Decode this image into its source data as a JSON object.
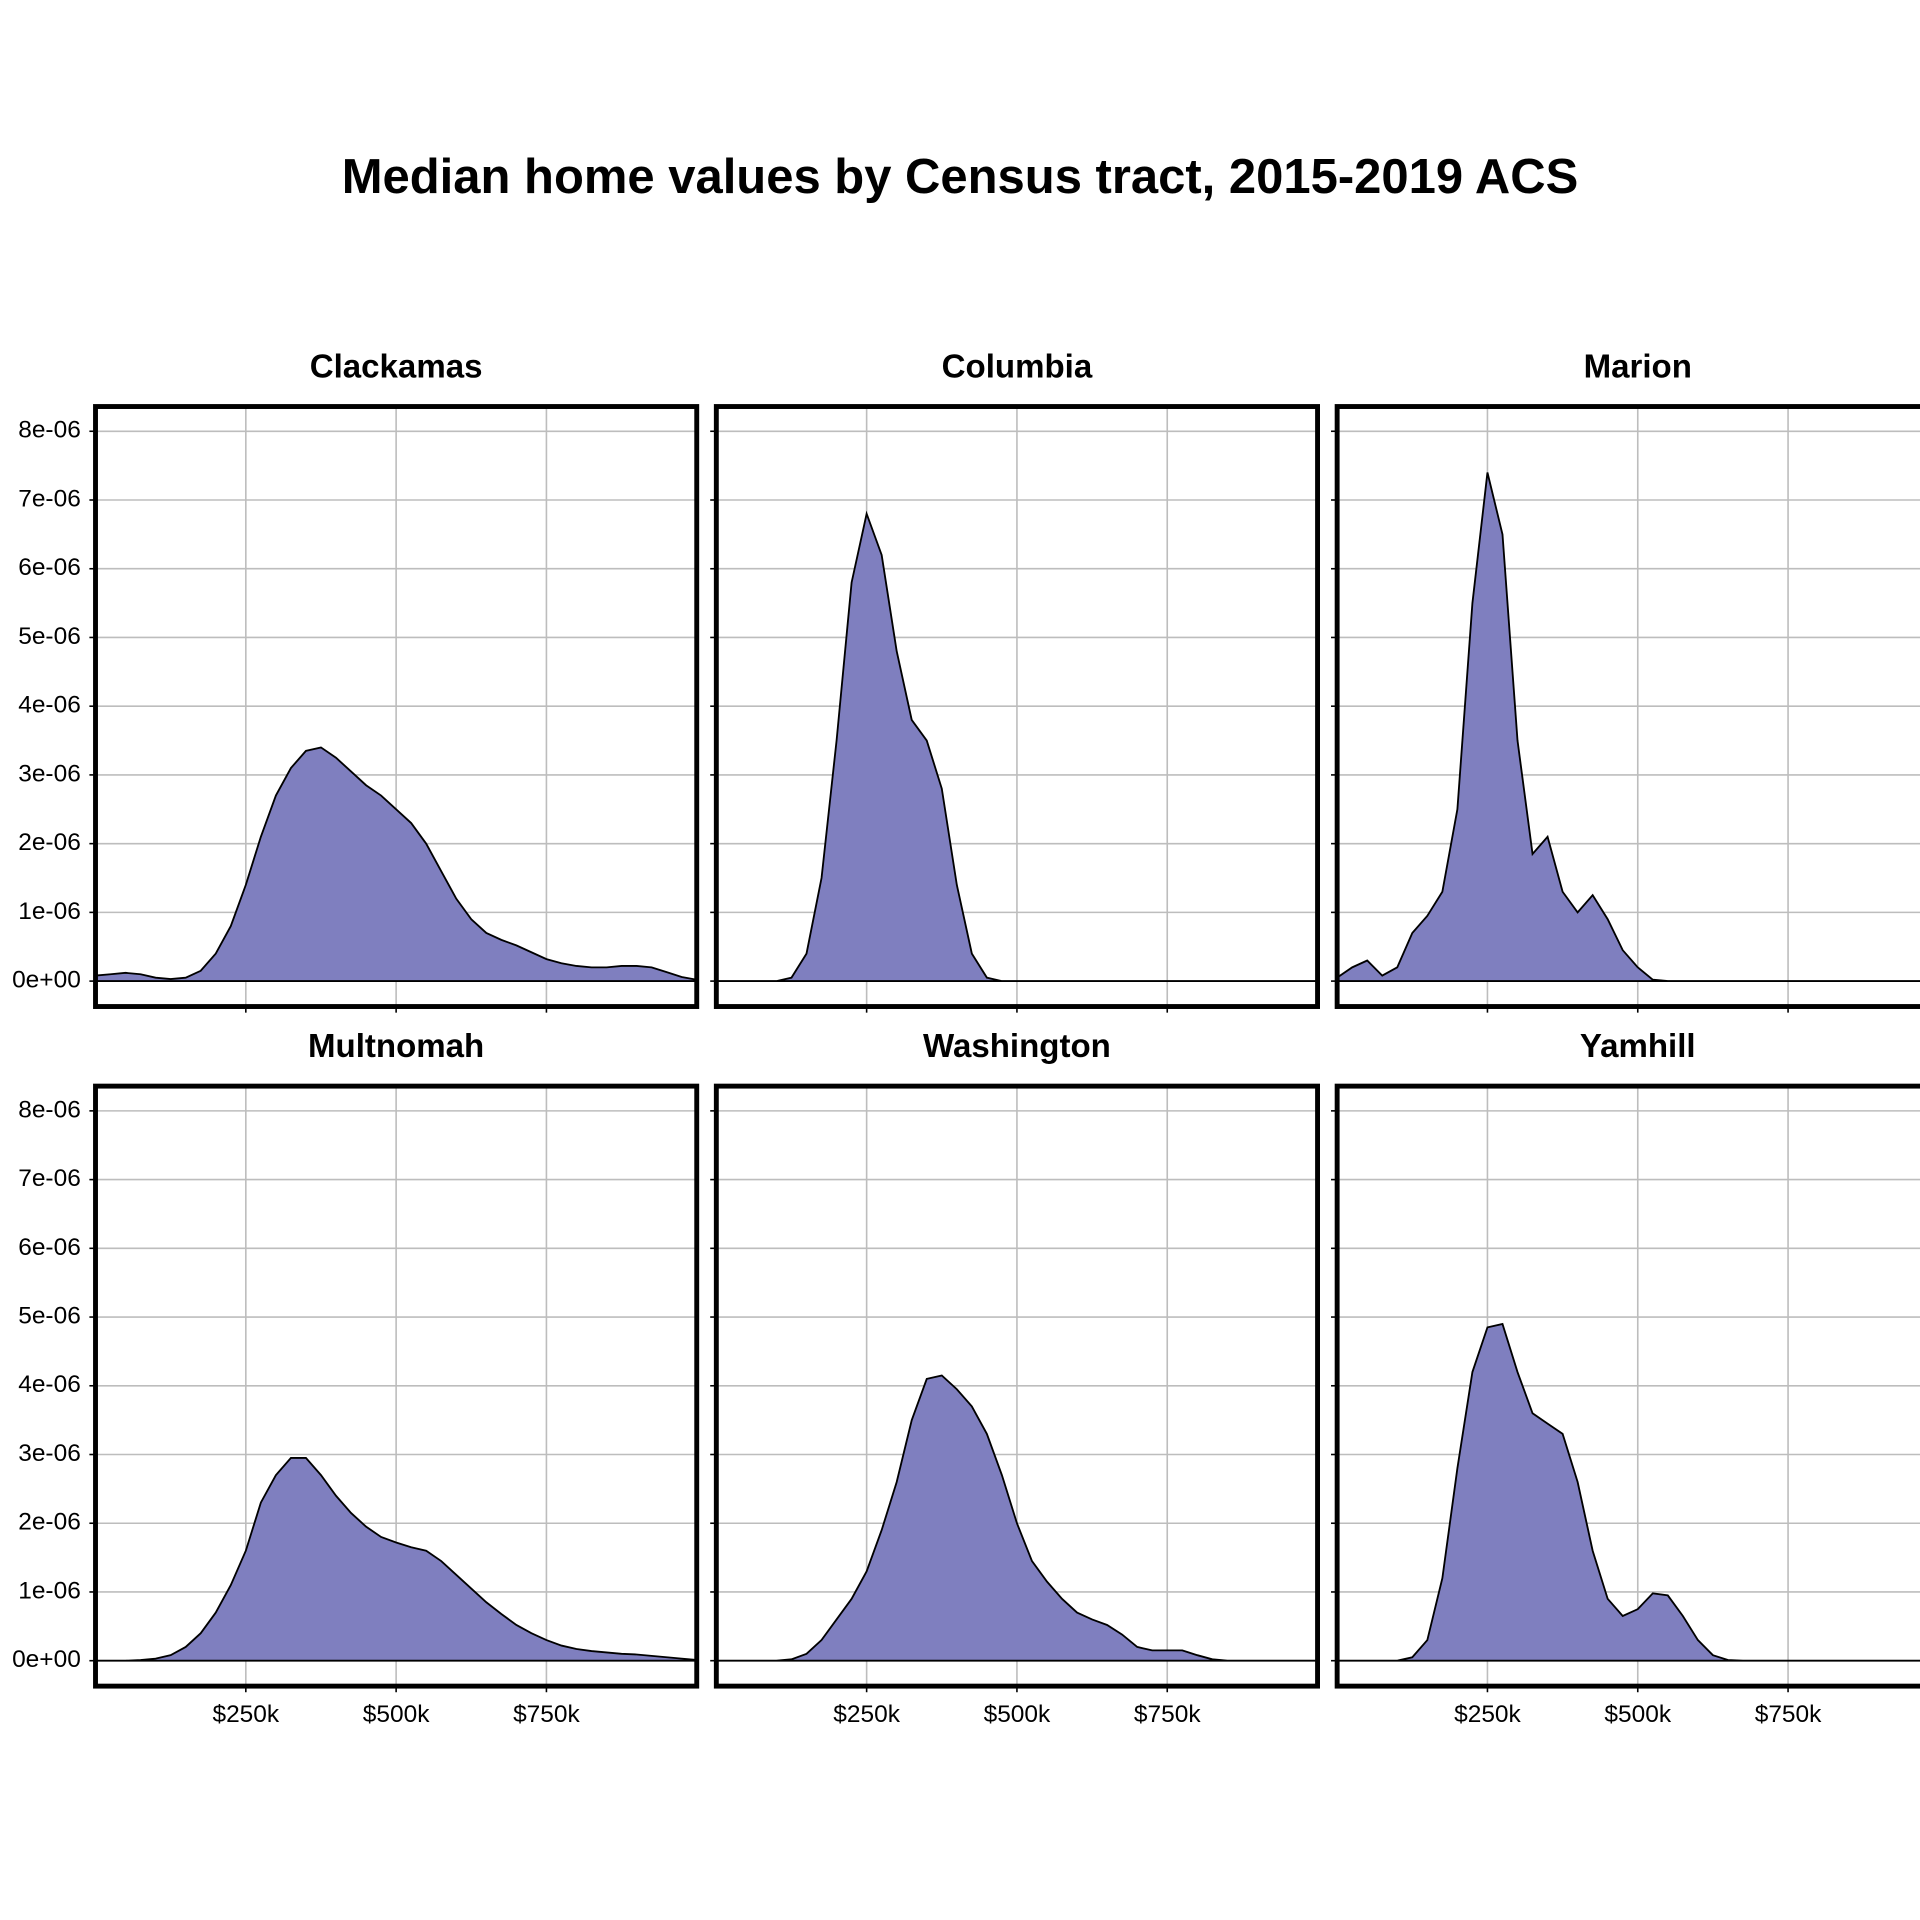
{
  "chart_data": {
    "type": "area",
    "title": "Median home values by Census tract, 2015-2019 ACS",
    "x": [
      0,
      25000,
      50000,
      75000,
      100000,
      125000,
      150000,
      175000,
      200000,
      225000,
      250000,
      275000,
      300000,
      325000,
      350000,
      375000,
      400000,
      425000,
      450000,
      475000,
      500000,
      525000,
      550000,
      575000,
      600000,
      625000,
      650000,
      675000,
      700000,
      725000,
      750000,
      775000,
      800000,
      825000,
      850000,
      875000,
      900000,
      925000,
      950000,
      975000,
      1000000
    ],
    "series": [
      {
        "name": "Clackamas",
        "color": "#7f7fbf",
        "values": [
          8e-08,
          1e-07,
          1.2e-07,
          1e-07,
          5e-08,
          3e-08,
          5e-08,
          1.5e-07,
          4e-07,
          8e-07,
          1.4e-06,
          2.1e-06,
          2.7e-06,
          3.1e-06,
          3.35e-06,
          3.4e-06,
          3.25e-06,
          3.05e-06,
          2.85e-06,
          2.7e-06,
          2.5e-06,
          2.3e-06,
          2e-06,
          1.6e-06,
          1.2e-06,
          9e-07,
          7e-07,
          6e-07,
          5.2e-07,
          4.2e-07,
          3.2e-07,
          2.6e-07,
          2.2e-07,
          2e-07,
          2e-07,
          2.2e-07,
          2.2e-07,
          2e-07,
          1.3e-07,
          6e-08,
          2e-08
        ]
      },
      {
        "name": "Columbia",
        "color": "#7f7fbf",
        "values": [
          0,
          0,
          0,
          0,
          0,
          5e-08,
          4e-07,
          1.5e-06,
          3.5e-06,
          5.8e-06,
          6.8e-06,
          6.2e-06,
          4.8e-06,
          3.8e-06,
          3.5e-06,
          2.8e-06,
          1.4e-06,
          4e-07,
          5e-08,
          0,
          0,
          0,
          0,
          0,
          0,
          0,
          0,
          0,
          0,
          0,
          0,
          0,
          0,
          0,
          0,
          0,
          0,
          0,
          0,
          0,
          0
        ]
      },
      {
        "name": "Marion",
        "color": "#7f7fbf",
        "values": [
          5e-08,
          2e-07,
          3e-07,
          8e-08,
          2e-07,
          7e-07,
          9.5e-07,
          1.3e-06,
          2.5e-06,
          5.5e-06,
          7.4e-06,
          6.5e-06,
          3.5e-06,
          1.85e-06,
          2.1e-06,
          1.3e-06,
          1e-06,
          1.25e-06,
          9e-07,
          4.5e-07,
          2e-07,
          2e-08,
          0,
          0,
          0,
          0,
          0,
          0,
          0,
          0,
          0,
          0,
          0,
          0,
          0,
          0,
          0,
          0,
          0,
          0,
          0
        ]
      },
      {
        "name": "Multnomah",
        "color": "#7f7fbf",
        "values": [
          0,
          0,
          0,
          1e-08,
          3e-08,
          8e-08,
          2e-07,
          4e-07,
          7e-07,
          1.1e-06,
          1.6e-06,
          2.3e-06,
          2.7e-06,
          2.95e-06,
          2.95e-06,
          2.7e-06,
          2.4e-06,
          2.15e-06,
          1.95e-06,
          1.8e-06,
          1.72e-06,
          1.65e-06,
          1.6e-06,
          1.45e-06,
          1.25e-06,
          1.05e-06,
          8.5e-07,
          6.8e-07,
          5.2e-07,
          4e-07,
          3e-07,
          2.2e-07,
          1.7e-07,
          1.4e-07,
          1.2e-07,
          1e-07,
          9e-08,
          7e-08,
          5e-08,
          3e-08,
          1e-08
        ]
      },
      {
        "name": "Washington",
        "color": "#7f7fbf",
        "values": [
          0,
          0,
          0,
          0,
          0,
          2e-08,
          1e-07,
          3e-07,
          6e-07,
          9e-07,
          1.3e-06,
          1.9e-06,
          2.6e-06,
          3.5e-06,
          4.1e-06,
          4.15e-06,
          3.95e-06,
          3.7e-06,
          3.3e-06,
          2.7e-06,
          2e-06,
          1.45e-06,
          1.15e-06,
          9e-07,
          7e-07,
          6e-07,
          5.2e-07,
          3.8e-07,
          2e-07,
          1.5e-07,
          1.5e-07,
          1.5e-07,
          8e-08,
          2e-08,
          0,
          0,
          0,
          0,
          0,
          0,
          0
        ]
      },
      {
        "name": "Yamhill",
        "color": "#7f7fbf",
        "values": [
          0,
          0,
          0,
          0,
          0,
          5e-08,
          3e-07,
          1.2e-06,
          2.8e-06,
          4.2e-06,
          4.85e-06,
          4.9e-06,
          4.2e-06,
          3.6e-06,
          3.45e-06,
          3.3e-06,
          2.6e-06,
          1.6e-06,
          9e-07,
          6.5e-07,
          7.5e-07,
          9.8e-07,
          9.5e-07,
          6.5e-07,
          3e-07,
          8e-08,
          1e-08,
          0,
          0,
          0,
          0,
          0,
          0,
          0,
          0,
          0,
          0,
          0,
          0,
          0,
          0
        ]
      }
    ],
    "xlim": [
      0,
      1000000
    ],
    "ylim": [
      -3.7e-07,
      8.36e-06
    ],
    "xticks": [
      {
        "value": 250000,
        "label": "$250k"
      },
      {
        "value": 500000,
        "label": "$500k"
      },
      {
        "value": 750000,
        "label": "$750k"
      }
    ],
    "yticks": [
      {
        "value": 0,
        "label": "0e+00"
      },
      {
        "value": 1e-06,
        "label": "1e-06"
      },
      {
        "value": 2e-06,
        "label": "2e-06"
      },
      {
        "value": 3e-06,
        "label": "3e-06"
      },
      {
        "value": 4e-06,
        "label": "4e-06"
      },
      {
        "value": 5e-06,
        "label": "5e-06"
      },
      {
        "value": 6e-06,
        "label": "6e-06"
      },
      {
        "value": 7e-06,
        "label": "7e-06"
      },
      {
        "value": 8e-06,
        "label": "8e-06"
      }
    ],
    "grid": true
  }
}
